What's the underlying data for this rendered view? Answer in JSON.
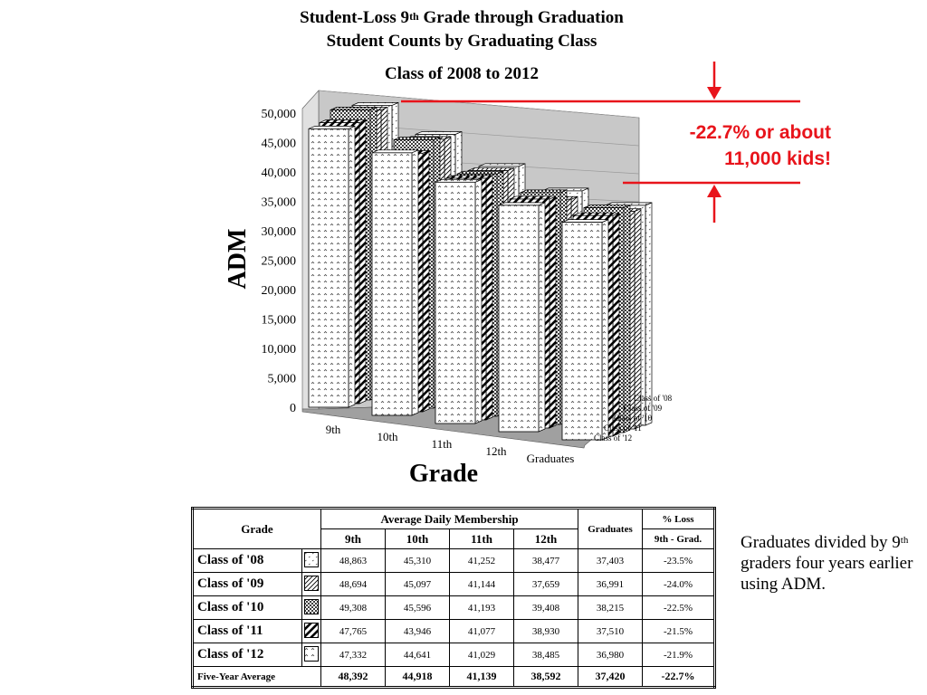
{
  "titles": {
    "line1_pre": "Student-Loss 9",
    "line1_sup": "th",
    "line1_post": " Grade through Graduation",
    "line2": "Student Counts by Graduating Class",
    "line3": "Class of 2008 to 2012"
  },
  "annotation": {
    "line1": "-22.7% or about",
    "line2": "11,000 kids!"
  },
  "colors": {
    "annotation": "#e8141b",
    "wall": "#c8c8c8",
    "floor": "#a0a0a0"
  },
  "chart_data": {
    "type": "bar",
    "subtype": "3d-clustered",
    "title": "Class of 2008 to 2012",
    "xlabel": "Grade",
    "ylabel": "ADM",
    "ylim": [
      0,
      50000
    ],
    "yticks": [
      "0",
      "5,000",
      "10,000",
      "15,000",
      "20,000",
      "25,000",
      "30,000",
      "35,000",
      "40,000",
      "45,000",
      "50,000"
    ],
    "categories": [
      "9th",
      "10th",
      "11th",
      "12th",
      "Graduates"
    ],
    "series": [
      {
        "name": "Class of '08",
        "pattern": "dots-sparse",
        "values": [
          48863,
          45310,
          41252,
          38477,
          37403
        ]
      },
      {
        "name": "Class of '09",
        "pattern": "diagonal",
        "values": [
          48694,
          45097,
          41144,
          37659,
          36991
        ]
      },
      {
        "name": "Class of '10",
        "pattern": "dots-dense",
        "values": [
          49308,
          45596,
          41193,
          39408,
          38215
        ]
      },
      {
        "name": "Class of '11",
        "pattern": "stripes-wide",
        "values": [
          47765,
          43946,
          41077,
          38930,
          37510
        ]
      },
      {
        "name": "Class of '12",
        "pattern": "carets",
        "values": [
          47332,
          44641,
          41029,
          38485,
          36980
        ]
      }
    ],
    "depth_labels": [
      "Class of '08",
      "Class of '09",
      "Class of '10",
      "Class of '11",
      "Class of '12"
    ],
    "grid": true
  },
  "table": {
    "header_grade": "Grade",
    "header_adm": "Average Daily Membership",
    "header_graduates": "Graduates",
    "header_loss_1": "%  Loss",
    "header_loss_2": "9th - Grad.",
    "grades": [
      "9th",
      "10th",
      "11th",
      "12th"
    ],
    "rows": [
      {
        "label": "Class of '08",
        "pattern": "dots-sparse",
        "values": [
          "48,863",
          "45,310",
          "41,252",
          "38,477",
          "37,403",
          "-23.5%"
        ]
      },
      {
        "label": "Class of '09",
        "pattern": "diagonal",
        "values": [
          "48,694",
          "45,097",
          "41,144",
          "37,659",
          "36,991",
          "-24.0%"
        ]
      },
      {
        "label": "Class of '10",
        "pattern": "dots-dense",
        "values": [
          "49,308",
          "45,596",
          "41,193",
          "39,408",
          "38,215",
          "-22.5%"
        ]
      },
      {
        "label": "Class of '11",
        "pattern": "stripes-wide",
        "values": [
          "47,765",
          "43,946",
          "41,077",
          "38,930",
          "37,510",
          "-21.5%"
        ]
      },
      {
        "label": "Class of '12",
        "pattern": "carets",
        "values": [
          "47,332",
          "44,641",
          "41,029",
          "38,485",
          "36,980",
          "-21.9%"
        ]
      }
    ],
    "average": {
      "label": "Five-Year Average",
      "values": [
        "48,392",
        "44,918",
        "41,139",
        "38,592",
        "37,420",
        "-22.7%"
      ]
    }
  },
  "note": {
    "pre": "Graduates divided by 9",
    "sup": "th",
    "post": " graders four years earlier using ADM."
  }
}
